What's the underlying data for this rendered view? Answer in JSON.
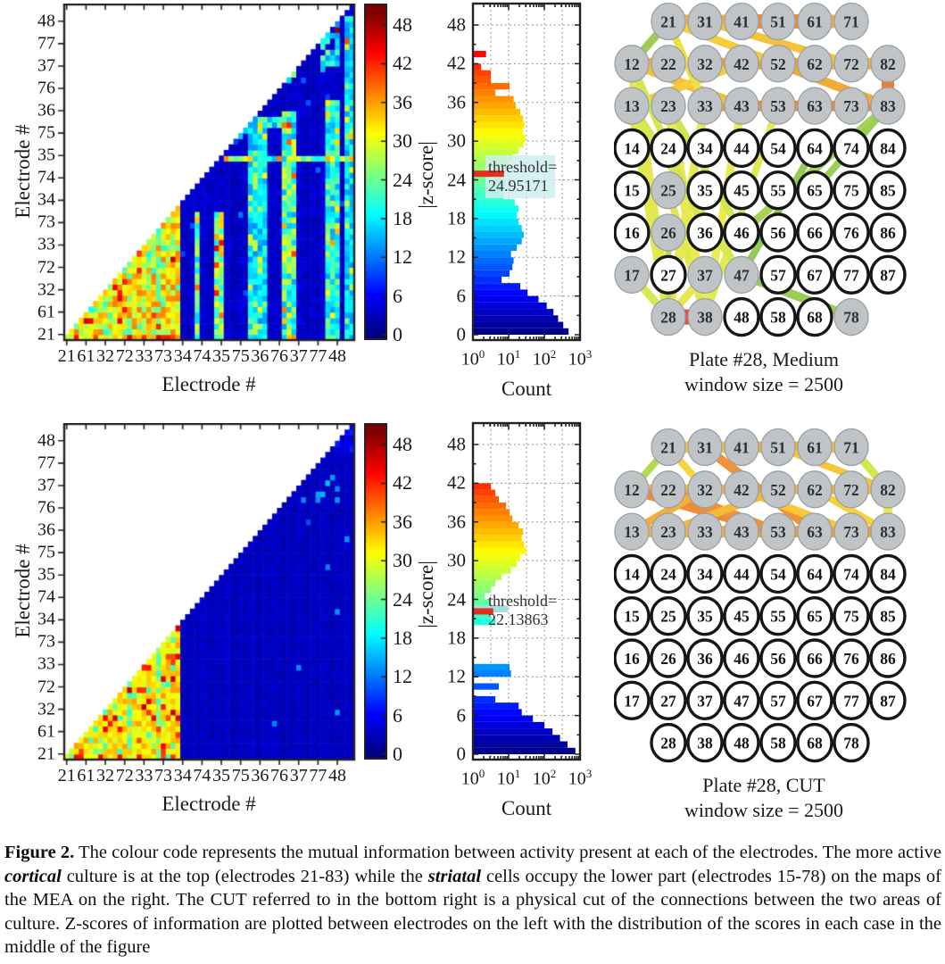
{
  "labels": {
    "electrode_axis": "Electrode #",
    "count_axis": "Count",
    "zscore_axis": "|z-score|"
  },
  "ticks": {
    "electrode": [
      "21",
      "61",
      "32",
      "72",
      "33",
      "73",
      "34",
      "74",
      "35",
      "75",
      "36",
      "76",
      "37",
      "77",
      "48"
    ],
    "colorbar": [
      48,
      42,
      36,
      30,
      24,
      18,
      12,
      6,
      0
    ],
    "hist_y": [
      48,
      42,
      36,
      30,
      24,
      18,
      12,
      6,
      0
    ],
    "hist_x": [
      {
        "b": "10",
        "e": "0"
      },
      {
        "b": "10",
        "e": "1"
      },
      {
        "b": "10",
        "e": "2"
      },
      {
        "b": "10",
        "e": "3"
      }
    ]
  },
  "rows": [
    {
      "name": "medium",
      "threshold_label": [
        "threshold=",
        "24.95171"
      ],
      "mea_caption": [
        "Plate #28, Medium",
        "window size = 2500"
      ]
    },
    {
      "name": "cut",
      "threshold_label": [
        "threshold=",
        "22.13863"
      ],
      "mea_caption": [
        "Plate #28, CUT",
        "window size = 2500"
      ]
    }
  ],
  "caption": {
    "segments": [
      {
        "t": "Figure 2.",
        "s": "b"
      },
      {
        "t": " The colour code represents the mutual information between activity present at each of the electrodes. The more active ",
        "s": "n"
      },
      {
        "t": "cortical",
        "s": "bi"
      },
      {
        "t": " culture is at the top (electrodes 21-83) while the ",
        "s": "n"
      },
      {
        "t": "striatal",
        "s": "bi"
      },
      {
        "t": " cells occupy the lower part (electrodes 15-78) on the maps of the MEA on the right.  The CUT referred to in the bottom right is a physical cut of the connections between the two areas of culture. Z-scores of information are plotted between electrodes on the left with the distribution of the scores in each case in the middle of the figure",
        "s": "n"
      }
    ]
  },
  "chart_data": [
    {
      "id": "zscore_histogram_medium",
      "type": "bar",
      "orientation": "horizontal",
      "xlabel": "Count",
      "ylabel": "|z-score|",
      "xscale": "log",
      "xlim": [
        1,
        1000
      ],
      "ylim": [
        0,
        50
      ],
      "bin_width": 1,
      "counts": [
        450,
        320,
        230,
        170,
        110,
        65,
        32,
        20,
        6,
        10,
        12,
        13,
        11,
        16,
        22,
        25,
        22,
        18,
        16,
        18,
        14,
        7,
        6,
        8,
        6,
        8,
        9,
        12,
        18,
        25,
        28,
        24,
        26,
        24,
        20,
        15,
        13,
        4,
        10,
        3,
        3,
        1.6,
        0,
        2.2,
        0
      ],
      "threshold": 24.95171,
      "threshold_bar_count": 7,
      "ann_box": true,
      "color_override": {}
    },
    {
      "id": "zscore_histogram_cut",
      "type": "bar",
      "orientation": "horizontal",
      "xlabel": "Count",
      "ylabel": "|z-score|",
      "xscale": "log",
      "xlim": [
        1,
        1000
      ],
      "ylim": [
        0,
        50
      ],
      "bin_width": 1,
      "counts": [
        700,
        420,
        260,
        160,
        95,
        45,
        22,
        18,
        4,
        0,
        5,
        0,
        11,
        10,
        0,
        0,
        0,
        0,
        0,
        0,
        4,
        3,
        9,
        3,
        2,
        3,
        4,
        6,
        11,
        16,
        20,
        30,
        26,
        22,
        24,
        18,
        12,
        10,
        8,
        5,
        4,
        3,
        0,
        0,
        0
      ],
      "threshold": 22.13863,
      "threshold_bar_count": 3.5,
      "ann_box": false,
      "color_override": {
        "22": "#a6dce2"
      }
    },
    {
      "id": "mi_heatmap_medium",
      "type": "heatmap",
      "xlabel": "Electrode #",
      "ylabel": "Electrode #",
      "n": 60,
      "triangle": "lower",
      "z_range": [
        0,
        50
      ],
      "tick_labels": [
        "21",
        "61",
        "32",
        "72",
        "33",
        "73",
        "34",
        "74",
        "35",
        "75",
        "36",
        "76",
        "37",
        "77",
        "48"
      ],
      "pattern": {
        "block": 24,
        "block_z": [
          26,
          38
        ],
        "hot_p": 0.07,
        "hot_z": [
          41,
          48
        ],
        "cool_p": 0.12,
        "cool_z": [
          20,
          26
        ],
        "cool_cols": [
          13,
          19
        ],
        "hot_row0": true,
        "base_z": [
          2,
          4.2
        ],
        "v_stripes": [
          {
            "c0": 27,
            "c1": 27,
            "r_max": 22,
            "z": [
              16,
              30
            ]
          },
          {
            "c0": 31,
            "c1": 32,
            "r_max": 22,
            "z": [
              18,
              34
            ]
          },
          {
            "c0": 38,
            "c1": 41,
            "r_max": 39,
            "z": [
              13,
              21
            ]
          },
          {
            "c0": 45,
            "c1": 47,
            "r_max": 40,
            "z": [
              14,
              30
            ]
          },
          {
            "c0": 54,
            "c1": 56,
            "r_max": 42,
            "z": [
              14,
              25
            ]
          },
          {
            "c0": 58,
            "c1": 59,
            "r_max": 57,
            "z": [
              13,
              21
            ]
          }
        ],
        "h_stripes": [
          {
            "r0": 32,
            "r1": 32,
            "c0": 33,
            "c1": 59,
            "z": [
              15,
              32
            ]
          },
          {
            "r0": 38,
            "r1": 39,
            "c0": 33,
            "c1": 47,
            "z": [
              13,
              25
            ]
          }
        ],
        "blobs": [
          {
            "c0": 33,
            "c1": 37,
            "r0": 36,
            "r1": 40,
            "z": [
              13,
              20
            ],
            "p": 0.85
          },
          {
            "c0": 44,
            "c1": 47,
            "r0": 45,
            "r1": 53,
            "z": [
              15,
              34
            ],
            "p": 0.7
          },
          {
            "c0": 53,
            "c1": 56,
            "r0": 48,
            "r1": 56,
            "z": [
              13,
              25
            ],
            "p": 0.7
          }
        ],
        "hot_cells": [
          [
            56,
            55,
            49
          ],
          [
            58,
            53,
            40
          ],
          [
            45,
            38,
            38
          ],
          [
            46,
            38,
            42
          ],
          [
            59,
            36,
            34
          ],
          [
            35,
            37,
            33
          ]
        ]
      }
    },
    {
      "id": "mi_heatmap_cut",
      "type": "heatmap",
      "xlabel": "Electrode #",
      "ylabel": "Electrode #",
      "n": 60,
      "triangle": "lower",
      "z_range": [
        0,
        50
      ],
      "tick_labels": [
        "21",
        "61",
        "32",
        "72",
        "33",
        "73",
        "34",
        "74",
        "35",
        "75",
        "36",
        "76",
        "37",
        "77",
        "48"
      ],
      "pattern": {
        "block": 24,
        "block_z": [
          29,
          36
        ],
        "hot_p": 0.12,
        "hot_z": [
          40,
          47
        ],
        "cool_p": 0.07,
        "cool_z": [
          21,
          26
        ],
        "cool_cols": [
          13,
          19
        ],
        "hot_row0": true,
        "base_z": [
          2,
          3.4
        ],
        "v_stripes": [],
        "h_stripes": [],
        "blobs": [
          {
            "c0": 52,
            "c1": 56,
            "r0": 46,
            "r1": 49,
            "z": [
              12,
              17
            ],
            "p": 0.35
          },
          {
            "c0": 56,
            "c1": 59,
            "r0": 55,
            "r1": 59,
            "z": [
              4,
              8
            ],
            "p": 0.8
          }
        ],
        "hot_cells": [
          [
            49,
            46,
            13
          ],
          [
            55,
            50,
            14
          ]
        ]
      }
    },
    {
      "id": "mea_map_medium",
      "type": "diagram",
      "title": "Plate #28, Medium",
      "window_size": 2500,
      "node_rows": [
        [
          "21",
          "31",
          "41",
          "51",
          "61",
          "71"
        ],
        [
          "12",
          "22",
          "32",
          "42",
          "52",
          "62",
          "72",
          "82"
        ],
        [
          "13",
          "23",
          "33",
          "43",
          "53",
          "63",
          "73",
          "83"
        ],
        [
          "14",
          "24",
          "34",
          "44",
          "54",
          "64",
          "74",
          "84"
        ],
        [
          "15",
          "25",
          "35",
          "45",
          "55",
          "65",
          "75",
          "85"
        ],
        [
          "16",
          "26",
          "36",
          "46",
          "56",
          "66",
          "76",
          "86"
        ],
        [
          "17",
          "27",
          "37",
          "47",
          "57",
          "67",
          "77",
          "87"
        ],
        [
          "28",
          "38",
          "48",
          "58",
          "68",
          "78"
        ]
      ],
      "gray_nodes": [
        "21",
        "31",
        "41",
        "51",
        "61",
        "71",
        "12",
        "22",
        "32",
        "42",
        "52",
        "62",
        "72",
        "82",
        "13",
        "23",
        "33",
        "43",
        "53",
        "63",
        "73",
        "83",
        "25",
        "26",
        "17",
        "37",
        "47",
        "28",
        "38",
        "78"
      ],
      "edges": [
        [
          "21",
          "71",
          "#f6a31f",
          15
        ],
        [
          "41",
          "61",
          "#ee7d1a",
          16
        ],
        [
          "12",
          "82",
          "#f6a31f",
          13
        ],
        [
          "22",
          "62",
          "#ef8c1b",
          12
        ],
        [
          "82",
          "83",
          "#ec6a19",
          14
        ],
        [
          "33",
          "83",
          "#f08a1b",
          12
        ],
        [
          "43",
          "83",
          "#ee7a1a",
          11
        ],
        [
          "12",
          "43",
          "#f4b81e",
          10
        ],
        [
          "52",
          "83",
          "#f2a01d",
          10
        ],
        [
          "21",
          "52",
          "#f5c51f",
          9
        ],
        [
          "31",
          "72",
          "#f4bb1e",
          9
        ],
        [
          "42",
          "13",
          "#f2c71f",
          9
        ],
        [
          "21",
          "33",
          "#eedc20",
          8
        ],
        [
          "12",
          "28",
          "#e5e43a",
          12
        ],
        [
          "13",
          "28",
          "#dde63a",
          11
        ],
        [
          "23",
          "38",
          "#e9e73c",
          12
        ],
        [
          "33",
          "28",
          "#e2e63b",
          10
        ],
        [
          "43",
          "38",
          "#e9e73c",
          9
        ],
        [
          "53",
          "38",
          "#dee63a",
          8
        ],
        [
          "13",
          "47",
          "#d4e439",
          9
        ],
        [
          "23",
          "46",
          "#cce338",
          8
        ],
        [
          "37",
          "28",
          "#e5e43a",
          9
        ],
        [
          "25",
          "38",
          "#dce539",
          8
        ],
        [
          "17",
          "28",
          "#d8e539",
          9
        ],
        [
          "12",
          "36",
          "#cfe338",
          8
        ],
        [
          "21",
          "12",
          "#8fc83f",
          9
        ],
        [
          "83",
          "46",
          "#9bcd3d",
          9
        ],
        [
          "83",
          "65",
          "#8fc83f",
          8
        ],
        [
          "64",
          "47",
          "#85c440",
          8
        ],
        [
          "47",
          "78",
          "#8cc63f",
          10
        ],
        [
          "26",
          "28",
          "#b2d83b",
          7
        ],
        [
          "28",
          "38",
          "#e8341d",
          17
        ]
      ]
    },
    {
      "id": "mea_map_cut",
      "type": "diagram",
      "title": "Plate #28, CUT",
      "window_size": 2500,
      "node_rows": [
        [
          "21",
          "31",
          "41",
          "51",
          "61",
          "71"
        ],
        [
          "12",
          "22",
          "32",
          "42",
          "52",
          "62",
          "72",
          "82"
        ],
        [
          "13",
          "23",
          "33",
          "43",
          "53",
          "63",
          "73",
          "83"
        ],
        [
          "14",
          "24",
          "34",
          "44",
          "54",
          "64",
          "74",
          "84"
        ],
        [
          "15",
          "25",
          "35",
          "45",
          "55",
          "65",
          "75",
          "85"
        ],
        [
          "16",
          "26",
          "36",
          "46",
          "56",
          "66",
          "76",
          "86"
        ],
        [
          "17",
          "27",
          "37",
          "47",
          "57",
          "67",
          "77",
          "87"
        ],
        [
          "28",
          "38",
          "48",
          "58",
          "68",
          "78"
        ]
      ],
      "gray_nodes": [
        "21",
        "31",
        "41",
        "51",
        "61",
        "71",
        "12",
        "22",
        "32",
        "42",
        "52",
        "62",
        "72",
        "82",
        "13",
        "23",
        "33",
        "43",
        "53",
        "63",
        "73",
        "83"
      ],
      "edges": [
        [
          "21",
          "71",
          "#f5c01e",
          13
        ],
        [
          "41",
          "61",
          "#f2a51d",
          12
        ],
        [
          "12",
          "82",
          "#f3b01d",
          11
        ],
        [
          "13",
          "83",
          "#f09a1c",
          13
        ],
        [
          "12",
          "53",
          "#ed7a1a",
          12
        ],
        [
          "22",
          "53",
          "#ee851b",
          10
        ],
        [
          "31",
          "63",
          "#ee851b",
          10
        ],
        [
          "32",
          "13",
          "#f0a51d",
          9
        ],
        [
          "42",
          "73",
          "#f4c01e",
          9
        ],
        [
          "52",
          "23",
          "#f2b01d",
          9
        ],
        [
          "62",
          "83",
          "#f4cb1f",
          8
        ],
        [
          "51",
          "82",
          "#f4c01e",
          8
        ],
        [
          "21",
          "12",
          "#aad43c",
          8
        ],
        [
          "71",
          "82",
          "#cce338",
          9
        ],
        [
          "82",
          "83",
          "#e9e73c",
          10
        ],
        [
          "13",
          "43",
          "#f3b01d",
          10
        ],
        [
          "53",
          "83",
          "#ef921c",
          10
        ],
        [
          "21",
          "32",
          "#f4d020",
          8
        ]
      ]
    }
  ]
}
